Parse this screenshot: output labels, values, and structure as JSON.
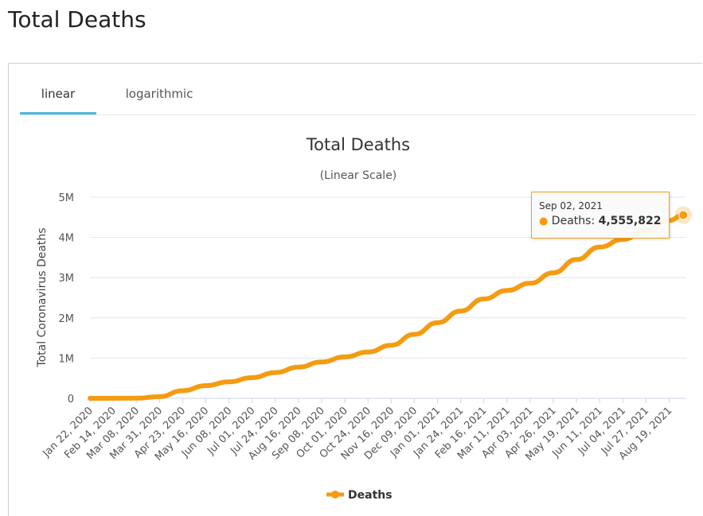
{
  "page": {
    "title": "Total Deaths"
  },
  "tabs": [
    {
      "label": "linear",
      "active": true
    },
    {
      "label": "logarithmic",
      "active": false
    }
  ],
  "tooltip": {
    "date": "Sep 02, 2021",
    "series": "Deaths",
    "value": "4,555,822"
  },
  "colors": {
    "series": "#f39c12",
    "tab_active": "#4fb8dc"
  },
  "chart_data": {
    "type": "line",
    "title": "Total Deaths",
    "subtitle": "(Linear Scale)",
    "ylabel": "Total Coronavirus Deaths",
    "xlabel": "",
    "ylim": [
      0,
      5000000
    ],
    "yticks": [
      0,
      1000000,
      2000000,
      3000000,
      4000000,
      5000000
    ],
    "ytick_labels": [
      "0",
      "1M",
      "2M",
      "3M",
      "4M",
      "5M"
    ],
    "xtick_labels": [
      "Jan 22, 2020",
      "Feb 14, 2020",
      "Mar 08, 2020",
      "Mar 31, 2020",
      "Apr 23, 2020",
      "May 16, 2020",
      "Jun 08, 2020",
      "Jul 01, 2020",
      "Jul 24, 2020",
      "Aug 16, 2020",
      "Sep 08, 2020",
      "Oct 01, 2020",
      "Oct 24, 2020",
      "Nov 16, 2020",
      "Dec 09, 2020",
      "Jan 01, 2021",
      "Jan 24, 2021",
      "Feb 16, 2021",
      "Mar 11, 2021",
      "Apr 03, 2021",
      "Apr 26, 2021",
      "May 19, 2021",
      "Jun 11, 2021",
      "Jul 04, 2021",
      "Jul 27, 2021",
      "Aug 19, 2021"
    ],
    "legend": "bottom-center",
    "grid": true,
    "series": [
      {
        "name": "Deaths",
        "x_index": [
          0,
          1,
          2,
          3,
          4,
          5,
          6,
          7,
          8,
          9,
          10,
          11,
          12,
          13,
          14,
          15,
          16,
          17,
          18,
          19,
          20,
          21,
          22,
          23,
          24,
          25,
          25.61
        ],
        "values": [
          17,
          1500,
          3800,
          42000,
          190000,
          315000,
          410000,
          515000,
          640000,
          775000,
          905000,
          1030000,
          1150000,
          1320000,
          1590000,
          1880000,
          2170000,
          2470000,
          2680000,
          2860000,
          3120000,
          3450000,
          3760000,
          3950000,
          4180000,
          4420000,
          4555822
        ]
      }
    ]
  }
}
